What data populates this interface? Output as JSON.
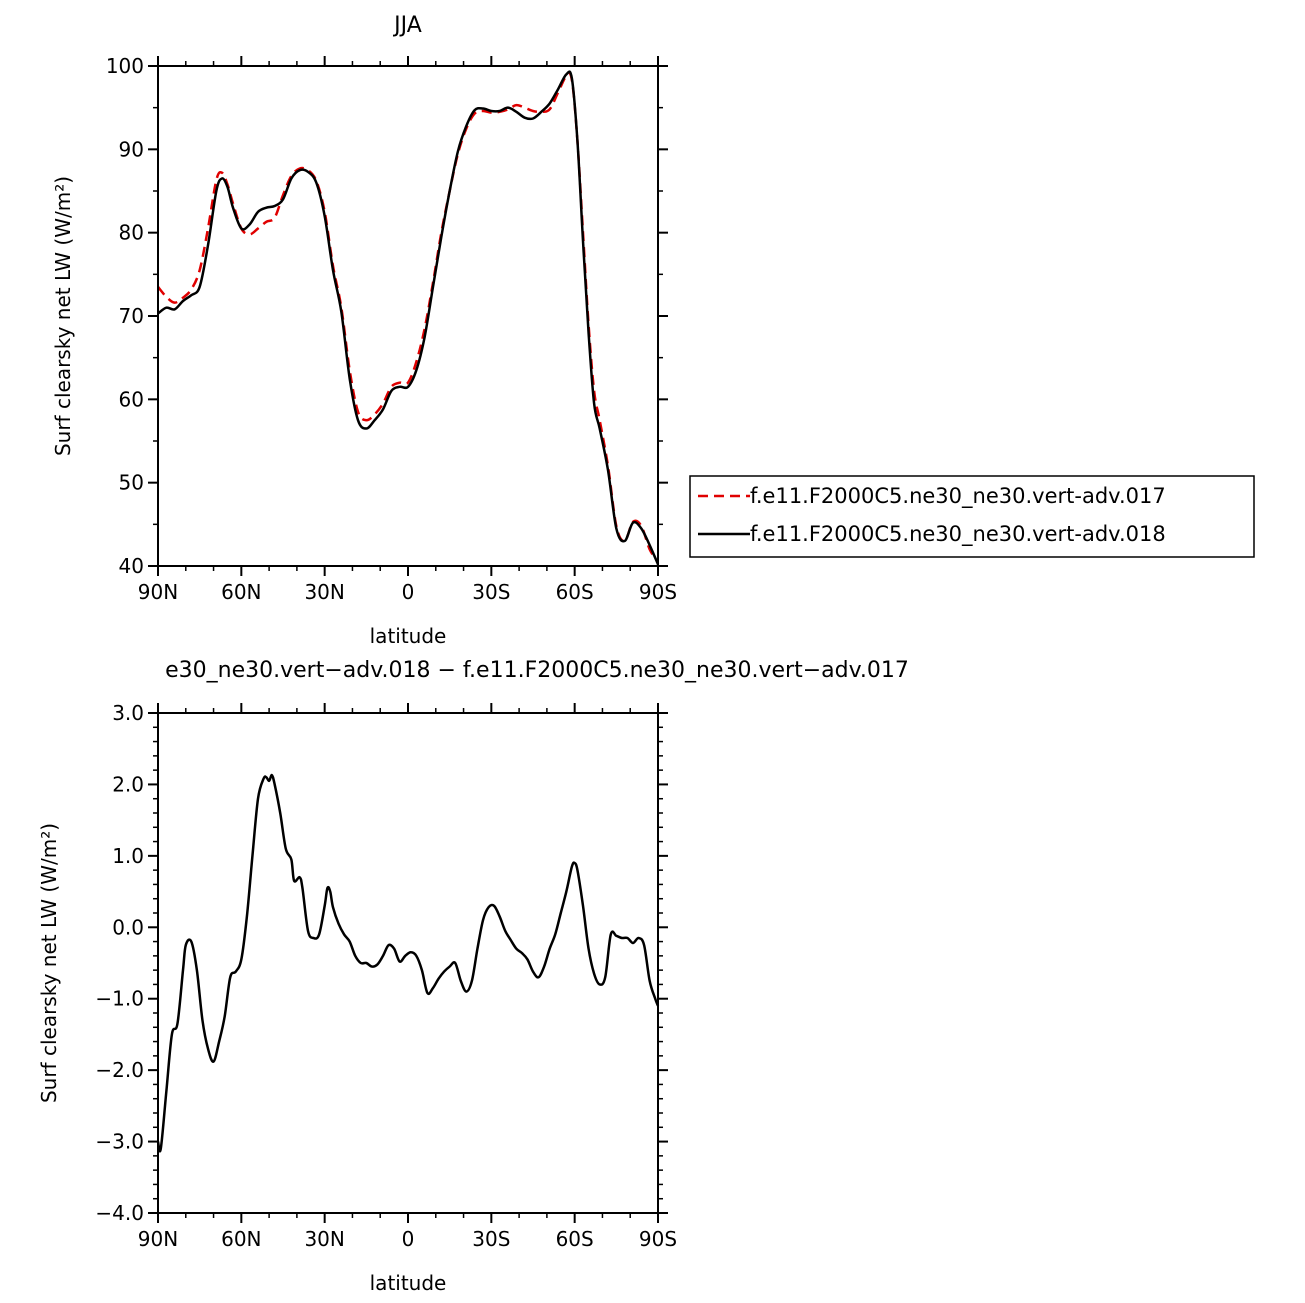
{
  "chart_data": [
    {
      "type": "line",
      "title": "JJA",
      "xlabel": "latitude",
      "ylabel": "Surf clearsky net LW (W/m²)",
      "x_tick_labels": [
        "90N",
        "60N",
        "30N",
        "0",
        "30S",
        "60S",
        "90S"
      ],
      "x_tick_values": [
        90,
        60,
        30,
        0,
        -30,
        -60,
        -90
      ],
      "xlim": [
        90,
        -90
      ],
      "ylim": [
        40,
        100
      ],
      "y_tick_labels": [
        "40",
        "50",
        "60",
        "70",
        "80",
        "90",
        "100"
      ],
      "y_tick_values": [
        40,
        50,
        60,
        70,
        80,
        90,
        100
      ],
      "legend_position": "right",
      "x": [
        90,
        87,
        84,
        81,
        78,
        75,
        72,
        69,
        67,
        65,
        63,
        60,
        57,
        54,
        51,
        48,
        45,
        42,
        39,
        36,
        33,
        30,
        27,
        24,
        21,
        18,
        15,
        12,
        9,
        6,
        3,
        0,
        -3,
        -6,
        -9,
        -12,
        -15,
        -18,
        -21,
        -24,
        -27,
        -30,
        -33,
        -36,
        -39,
        -42,
        -45,
        -48,
        -51,
        -54,
        -57,
        -59,
        -61,
        -63,
        -65,
        -67,
        -69,
        -72,
        -75,
        -78,
        -81,
        -84,
        -87,
        -90
      ],
      "series": [
        {
          "name": "f.e11.F2000C5.ne30_ne30.vert-adv.017",
          "color": "#e00000",
          "dash": "dashed",
          "values": [
            73.5,
            72.3,
            71.6,
            72.2,
            73.2,
            75.5,
            80.5,
            86.3,
            87.2,
            85.8,
            83.5,
            80.5,
            79.8,
            80.5,
            81.3,
            81.8,
            84.5,
            86.8,
            87.7,
            87.5,
            86.2,
            82.5,
            76.0,
            71.0,
            63.5,
            58.5,
            57.5,
            58.2,
            59.5,
            61.5,
            62.0,
            62.0,
            64.5,
            68.5,
            74.0,
            80.0,
            85.0,
            89.5,
            92.5,
            94.3,
            94.6,
            94.4,
            94.5,
            94.8,
            95.3,
            95.0,
            94.6,
            94.5,
            94.8,
            96.8,
            98.8,
            98.3,
            91.0,
            80.0,
            69.0,
            61.0,
            57.5,
            52.0,
            44.8,
            43.0,
            45.3,
            44.8,
            42.0,
            40.5
          ]
        },
        {
          "name": "f.e11.F2000C5.ne30_ne30.vert-adv.018",
          "color": "#000000",
          "dash": "solid",
          "values": [
            70.3,
            71.0,
            70.8,
            71.8,
            72.5,
            73.5,
            78.5,
            85.0,
            86.5,
            85.5,
            83.0,
            80.5,
            81.0,
            82.5,
            83.0,
            83.2,
            84.0,
            86.5,
            87.5,
            87.3,
            86.0,
            82.0,
            75.5,
            70.5,
            62.5,
            57.5,
            56.5,
            57.5,
            58.8,
            61.0,
            61.5,
            61.5,
            63.5,
            67.5,
            73.5,
            79.5,
            85.0,
            89.8,
            92.8,
            94.7,
            94.9,
            94.6,
            94.6,
            95.0,
            94.5,
            93.8,
            93.7,
            94.5,
            95.5,
            97.2,
            99.0,
            98.5,
            91.0,
            79.0,
            68.0,
            59.5,
            56.5,
            51.5,
            44.5,
            43.0,
            45.2,
            44.5,
            42.5,
            40.2
          ]
        }
      ]
    },
    {
      "type": "line",
      "title": "e30_ne30.vert−adv.018 − f.e11.F2000C5.ne30_ne30.vert−adv.017",
      "xlabel": "latitude",
      "ylabel": "Surf clearsky net LW (W/m²)",
      "x_tick_labels": [
        "90N",
        "60N",
        "30N",
        "0",
        "30S",
        "60S",
        "90S"
      ],
      "x_tick_values": [
        90,
        60,
        30,
        0,
        -30,
        -60,
        -90
      ],
      "xlim": [
        90,
        -90
      ],
      "ylim": [
        -4.0,
        3.0
      ],
      "y_tick_labels": [
        "−4.0",
        "−3.0",
        "−2.0",
        "−1.0",
        "0.0",
        "1.0",
        "2.0",
        "3.0"
      ],
      "y_tick_values": [
        -4,
        -3,
        -2,
        -1,
        0,
        1,
        2,
        3
      ],
      "x": [
        90,
        89,
        87,
        85,
        83,
        81,
        80,
        78,
        76,
        74,
        72,
        70,
        68,
        66,
        64,
        62,
        60,
        58,
        56,
        54,
        52,
        51,
        50,
        49,
        48,
        46,
        44,
        42,
        41,
        39,
        38,
        36,
        34,
        32,
        30,
        29,
        28,
        27,
        25,
        23,
        21,
        19,
        17,
        15,
        13,
        11,
        9,
        7,
        5,
        3,
        1,
        -1,
        -3,
        -5,
        -7,
        -9,
        -11,
        -13,
        -15,
        -17,
        -19,
        -21,
        -23,
        -25,
        -27,
        -29,
        -31,
        -33,
        -35,
        -37,
        -39,
        -41,
        -43,
        -45,
        -47,
        -49,
        -51,
        -53,
        -55,
        -57,
        -59,
        -60,
        -61,
        -63,
        -65,
        -67,
        -69,
        -71,
        -73,
        -75,
        -77,
        -79,
        -81,
        -83,
        -85,
        -87,
        -89,
        -90
      ],
      "series": [
        {
          "name": "",
          "color": "#000000",
          "dash": "solid",
          "values": [
            -3.0,
            -3.1,
            -2.3,
            -1.5,
            -1.35,
            -0.6,
            -0.25,
            -0.2,
            -0.6,
            -1.3,
            -1.7,
            -1.88,
            -1.6,
            -1.25,
            -0.7,
            -0.62,
            -0.45,
            0.15,
            1.0,
            1.8,
            2.08,
            2.1,
            2.05,
            2.13,
            2.0,
            1.6,
            1.1,
            0.95,
            0.65,
            0.7,
            0.55,
            -0.05,
            -0.15,
            -0.1,
            0.3,
            0.55,
            0.5,
            0.28,
            0.05,
            -0.1,
            -0.2,
            -0.4,
            -0.5,
            -0.5,
            -0.55,
            -0.52,
            -0.4,
            -0.25,
            -0.3,
            -0.48,
            -0.4,
            -0.35,
            -0.4,
            -0.6,
            -0.92,
            -0.85,
            -0.72,
            -0.62,
            -0.55,
            -0.5,
            -0.75,
            -0.9,
            -0.75,
            -0.3,
            0.1,
            0.28,
            0.3,
            0.15,
            -0.05,
            -0.18,
            -0.3,
            -0.36,
            -0.45,
            -0.62,
            -0.7,
            -0.55,
            -0.3,
            -0.1,
            0.2,
            0.5,
            0.85,
            0.9,
            0.8,
            0.3,
            -0.3,
            -0.65,
            -0.8,
            -0.7,
            -0.1,
            -0.12,
            -0.15,
            -0.15,
            -0.22,
            -0.15,
            -0.25,
            -0.75,
            -1.0,
            -1.1
          ]
        }
      ]
    }
  ]
}
